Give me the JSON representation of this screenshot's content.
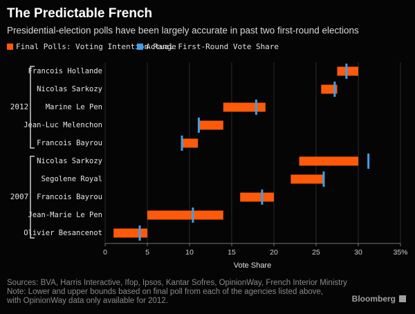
{
  "chart_data": {
    "type": "range_bar",
    "title": "The Predictable French",
    "subtitle": "Presidential-election polls have been largely accurate in past two first-round elections",
    "groups": [
      {
        "name": "2012",
        "categories": [
          "Francois Hollande",
          "Nicolas Sarkozy",
          "Marine Le Pen",
          "Jean-Luc Melenchon",
          "Francois Bayrou"
        ]
      },
      {
        "name": "2007",
        "categories": [
          "Nicolas Sarkozy",
          "Segolene Royal",
          "Francois Bayrou",
          "Jean-Marie Le Pen",
          "Olivier Besancenot"
        ]
      }
    ],
    "series": [
      {
        "name": "Final Polls: Voting Intention Range",
        "color": "#ff5a0a",
        "low": [
          27.5,
          25.6,
          14,
          11,
          9,
          23,
          22,
          16,
          5,
          1
        ],
        "high": [
          30,
          27.5,
          19,
          14,
          11,
          30,
          26,
          20,
          14,
          5
        ]
      },
      {
        "name": "Actual First-Round Vote Share",
        "color": "#3ca0ea",
        "values": [
          28.6,
          27.2,
          17.9,
          11.1,
          9.1,
          31.2,
          25.9,
          18.6,
          10.4,
          4.1
        ]
      }
    ],
    "xlabel": "Vote Share",
    "xlim": [
      0,
      35
    ],
    "xticks": [
      0,
      5,
      10,
      15,
      20,
      25,
      30,
      {
        "value": 35,
        "label": "35%"
      }
    ],
    "grid": true,
    "notes": [
      "Sources: BVA, Harris Interactive, Ifop, Ipsos, Kantar Sofres, OpinionWay, French Interior Ministry",
      "Note: Lower and upper bounds based on final poll from each of the agencies listed above,",
      "with OpinionWay data only available for 2012."
    ],
    "brand": "Bloomberg"
  }
}
